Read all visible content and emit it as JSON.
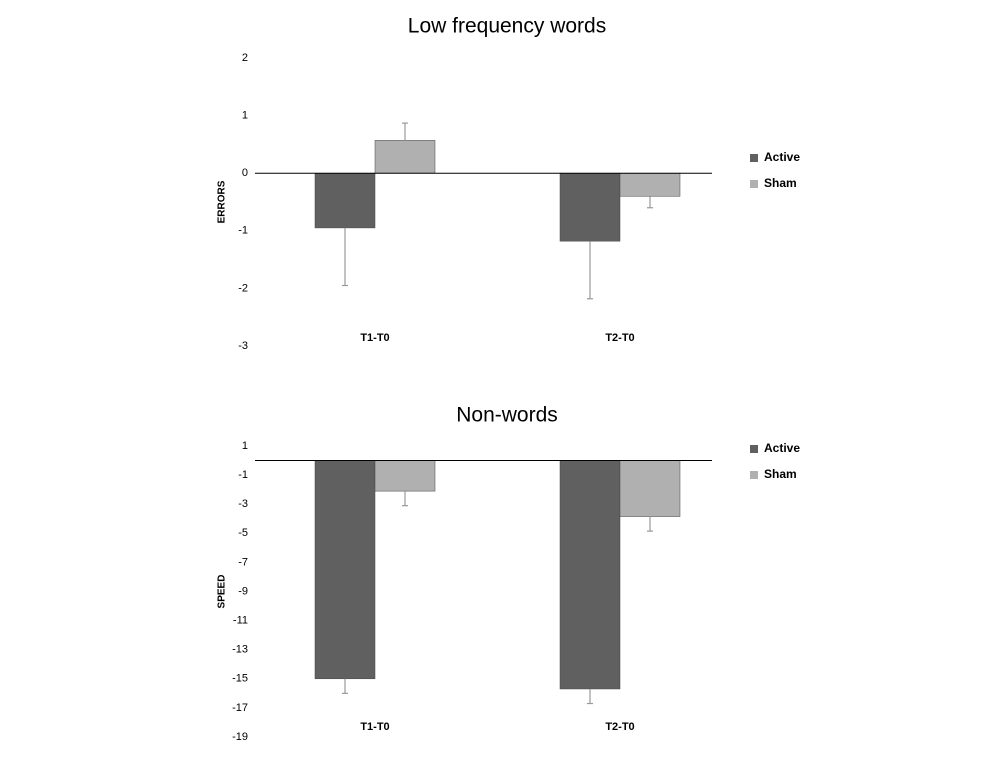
{
  "chart_data": [
    {
      "type": "bar",
      "title": "Low frequency words",
      "y_label": "ERRORS",
      "categories": [
        "T1-T0",
        "T2-T0"
      ],
      "series": [
        {
          "name": "Active",
          "color": "#606060",
          "values": [
            -0.95,
            -1.18
          ],
          "errors": [
            1.0,
            1.0
          ]
        },
        {
          "name": "Sham",
          "color": "#b0b0b0",
          "values": [
            0.57,
            -0.4
          ],
          "errors": [
            0.3,
            0.2
          ]
        }
      ],
      "ylim": [
        -3,
        2
      ],
      "yticks": [
        -3,
        -2,
        -1,
        0,
        1,
        2
      ]
    },
    {
      "type": "bar",
      "title": "Non-words",
      "y_label": "SPEED",
      "categories": [
        "T1-T0",
        "T2-T0"
      ],
      "series": [
        {
          "name": "Active",
          "color": "#606060",
          "values": [
            -15.0,
            -15.7
          ],
          "errors": [
            1.0,
            1.0
          ]
        },
        {
          "name": "Sham",
          "color": "#b0b0b0",
          "values": [
            -2.1,
            -3.85
          ],
          "errors": [
            1.0,
            1.0
          ]
        }
      ],
      "ylim": [
        -19,
        1
      ],
      "yticks": [
        -19,
        -17,
        -15,
        -13,
        -11,
        -9,
        -7,
        -5,
        -3,
        -1,
        1
      ]
    }
  ]
}
